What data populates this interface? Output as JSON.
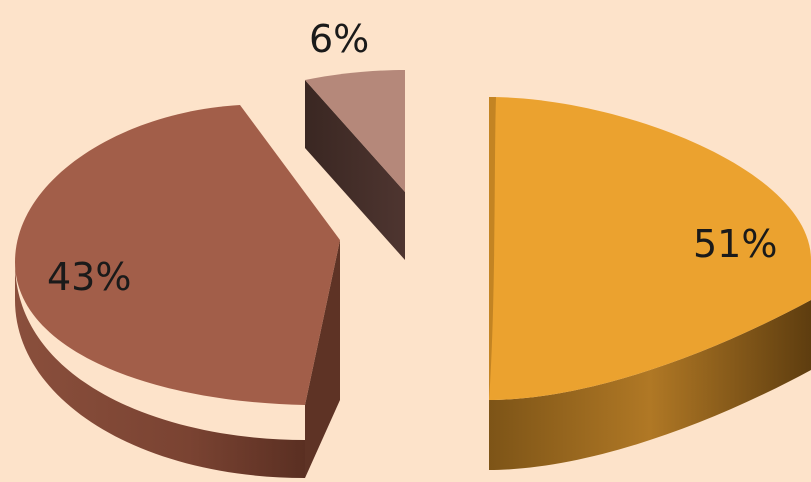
{
  "chart_data": {
    "type": "pie",
    "style": "3d-exploded",
    "slices": [
      {
        "value": 51,
        "label": "51%",
        "color": "#eba22f"
      },
      {
        "value": 6,
        "label": "6%",
        "color": "#b5887a"
      },
      {
        "value": 43,
        "label": "43%",
        "color": "#a25e49"
      }
    ],
    "legend": "none"
  }
}
